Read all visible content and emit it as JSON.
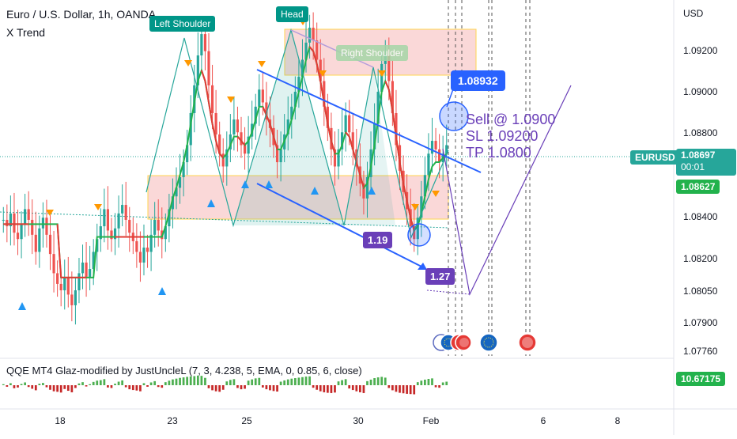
{
  "header": {
    "title": "Euro / U.S. Dollar, 1h, OANDA",
    "subtitle": "X Trend"
  },
  "price_axis": {
    "currency": "USD",
    "ticks": [
      "1.09200",
      "1.09000",
      "1.08800",
      "1.08400",
      "1.08200",
      "1.08050",
      "1.07900",
      "1.07760"
    ]
  },
  "time_axis": {
    "ticks": [
      "18",
      "23",
      "25",
      "30",
      "Feb",
      "6",
      "8"
    ]
  },
  "price_tags": {
    "symbol": "EURUSD",
    "last_price": "1.08697",
    "countdown": "00:01",
    "level_price": "1.08627",
    "callout": "1.08932"
  },
  "pattern_labels": {
    "left_shoulder": "Left Shoulder",
    "head": "Head",
    "right_shoulder": "Right Shoulder"
  },
  "ratio_labels": {
    "first": "1.19",
    "second": "1.27"
  },
  "trade_plan": {
    "sell": "Sell @ 1.0900",
    "sl": "SL 1.09200",
    "tp": "TP 1.0800"
  },
  "indicator": {
    "name": "QQE MT4 Glaz-modified by JustUncleL (7, 3, 4.238, 5, EMA, 0, 0.85, 6, close)",
    "value": "10.67175"
  },
  "colors": {
    "bull": "#26a69a",
    "bear": "#ef5350",
    "ma_green": "#22b24c",
    "ma_red": "#e53935",
    "channel": "#2962ff",
    "purple": "#6a3fb8",
    "zone_fill": "#f8c8c8",
    "marker_up": "#2196f3",
    "marker_down": "#ff9800"
  },
  "chart_data": {
    "type": "line",
    "symbol": "EURUSD",
    "candles_close": [
      1.0835,
      1.0832,
      1.0838,
      1.0829,
      1.0826,
      1.0833,
      1.084,
      1.0835,
      1.0828,
      1.082,
      1.0831,
      1.0836,
      1.0828,
      1.0819,
      1.081,
      1.0805,
      1.0802,
      1.0808,
      1.08,
      1.0795,
      1.0802,
      1.081,
      1.0815,
      1.0808,
      1.0812,
      1.082,
      1.0826,
      1.0832,
      1.084,
      1.083,
      1.0826,
      1.0831,
      1.0838,
      1.0842,
      1.0835,
      1.0829,
      1.0825,
      1.082,
      1.0815,
      1.0822,
      1.082,
      1.0828,
      1.0835,
      1.083,
      1.0826,
      1.0832,
      1.084,
      1.0846,
      1.085,
      1.0855,
      1.0862,
      1.087,
      1.0885,
      1.0898,
      1.0912,
      1.0922,
      1.0914,
      1.0898,
      1.0885,
      1.0875,
      1.0866,
      1.086,
      1.0868,
      1.0875,
      1.0882,
      1.0876,
      1.087,
      1.0866,
      1.0874,
      1.088,
      1.0888,
      1.0896,
      1.089,
      1.0882,
      1.0878,
      1.087,
      1.0862,
      1.0868,
      1.0875,
      1.0882,
      1.0888,
      1.0895,
      1.0902,
      1.091,
      1.0918,
      1.0925,
      1.0919,
      1.091,
      1.09,
      1.0888,
      1.0878,
      1.0868,
      1.086,
      1.0868,
      1.0876,
      1.0884,
      1.0876,
      1.0868,
      1.086,
      1.0852,
      1.0845,
      1.0855,
      1.0868,
      1.088,
      1.0895,
      1.0908,
      1.0912,
      1.09,
      1.0885,
      1.087,
      1.0858,
      1.0848,
      1.084,
      1.0832,
      1.0826,
      1.0836,
      1.0846,
      1.0856,
      1.0866,
      1.0872,
      1.0868,
      1.0862,
      1.0866,
      1.087
    ],
    "moving_average": [
      1.0833,
      1.0833,
      1.0833,
      1.0833,
      1.0833,
      1.0833,
      1.0833,
      1.0833,
      1.0833,
      1.0833,
      1.0833,
      1.0833,
      1.0833,
      1.0833,
      1.0833,
      1.0833,
      1.0808,
      1.0808,
      1.0808,
      1.0808,
      1.0808,
      1.0808,
      1.0808,
      1.0808,
      1.0808,
      1.0808,
      1.0827,
      1.0827,
      1.0827,
      1.0827,
      1.0827,
      1.0827,
      1.0827,
      1.0827,
      1.0827,
      1.0827,
      1.0827,
      1.0827,
      1.0827,
      1.0827,
      1.0827,
      1.0827,
      1.0827,
      1.0827,
      1.0827,
      1.0832,
      1.0838,
      1.0845,
      1.085,
      1.0856,
      1.0862,
      1.087,
      1.088,
      1.089,
      1.09,
      1.0905,
      1.09,
      1.089,
      1.088,
      1.0872,
      1.0866,
      1.0864,
      1.0866,
      1.087,
      1.0874,
      1.0874,
      1.0872,
      1.087,
      1.0872,
      1.0876,
      1.0882,
      1.0888,
      1.0888,
      1.0884,
      1.088,
      1.0874,
      1.0868,
      1.0868,
      1.0872,
      1.0876,
      1.0882,
      1.0888,
      1.0895,
      1.0902,
      1.091,
      1.0916,
      1.0914,
      1.0908,
      1.09,
      1.089,
      1.088,
      1.0872,
      1.0866,
      1.0866,
      1.087,
      1.0876,
      1.0874,
      1.0868,
      1.0862,
      1.0856,
      1.085,
      1.0852,
      1.086,
      1.087,
      1.0882,
      1.0895,
      1.09,
      1.0896,
      1.0886,
      1.0874,
      1.0862,
      1.0852,
      1.0844,
      1.0836,
      1.083,
      1.0832,
      1.0838,
      1.0846,
      1.0854,
      1.086,
      1.0862,
      1.0862,
      1.0864,
      1.0866
    ],
    "ylim": [
      1.0772,
      1.0935
    ],
    "qqe_histogram": [
      0.4,
      -0.6,
      0.8,
      -1.2,
      -0.9,
      0.5,
      1.1,
      -0.7,
      -1.4,
      -2.0,
      0.6,
      0.9,
      -0.8,
      -1.8,
      -2.4,
      -2.6,
      -2.9,
      -1.5,
      -2.2,
      -2.8,
      -1.1,
      0.7,
      1.2,
      -0.5,
      0.4,
      1.3,
      1.8,
      2.0,
      2.4,
      -0.9,
      -1.1,
      0.6,
      1.4,
      1.9,
      -0.8,
      -1.6,
      -1.9,
      -2.1,
      -2.4,
      0.8,
      -0.6,
      1.1,
      1.6,
      -0.7,
      -1.0,
      1.2,
      1.8,
      2.3,
      2.6,
      2.9,
      3.1,
      3.3,
      3.5,
      3.6,
      3.8,
      3.7,
      2.9,
      -1.2,
      -2.0,
      -2.4,
      -2.6,
      -1.8,
      1.5,
      2.1,
      2.4,
      -1.1,
      -1.6,
      -1.4,
      1.8,
      2.3,
      2.7,
      2.9,
      -0.9,
      -1.6,
      -2.0,
      -2.3,
      -2.5,
      1.4,
      1.9,
      2.3,
      2.6,
      2.8,
      3.0,
      3.2,
      3.4,
      3.5,
      -1.0,
      -1.8,
      -2.4,
      -2.8,
      -3.0,
      -3.1,
      -2.9,
      1.5,
      2.0,
      2.4,
      -1.3,
      -1.9,
      -2.4,
      -2.8,
      -3.1,
      1.6,
      2.2,
      2.8,
      3.1,
      3.3,
      3.0,
      -1.1,
      -2.0,
      -2.6,
      -3.0,
      -3.2,
      -3.4,
      -3.5,
      -3.6,
      1.2,
      1.8,
      2.2,
      2.5,
      2.7,
      -0.8,
      -1.0,
      1.1,
      1.4
    ],
    "channel_upper": [
      [
        1.0911,
        0
      ],
      [
        1.0875,
        0
      ]
    ],
    "channel_lower": [
      [
        1.0868,
        0
      ],
      [
        1.0819,
        0
      ]
    ],
    "sell_zone": [
      1.0908,
      1.093
    ],
    "buy_zone": [
      1.084,
      1.0861
    ],
    "projected_path": [
      1.087,
      1.0805,
      1.0905
    ],
    "last_price": 1.08697,
    "level_price": 1.08627
  }
}
